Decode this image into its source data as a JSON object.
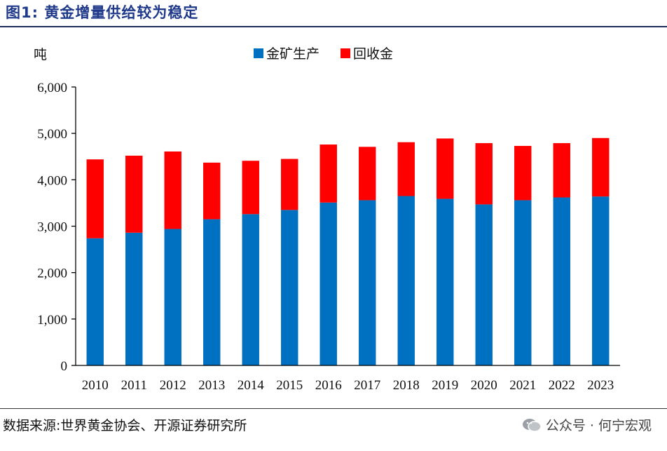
{
  "title": "图1:  黄金增量供给较为稳定",
  "source": "数据来源:世界黄金协会、开源证券研究所",
  "watermark": "公众号 · 何宁宏观",
  "chart_data": {
    "type": "bar",
    "stacked": true,
    "ylabel": "吨",
    "ylim": [
      0,
      6000
    ],
    "yticks": [
      "0",
      "1,000",
      "2,000",
      "3,000",
      "4,000",
      "5,000",
      "6,000"
    ],
    "categories": [
      "2010",
      "2011",
      "2012",
      "2013",
      "2014",
      "2015",
      "2016",
      "2017",
      "2018",
      "2019",
      "2020",
      "2021",
      "2022",
      "2023"
    ],
    "legend_position": "top",
    "series": [
      {
        "name": "金矿生产",
        "color": "#0070c0",
        "values": [
          2740,
          2860,
          2940,
          3150,
          3260,
          3350,
          3510,
          3560,
          3650,
          3590,
          3470,
          3560,
          3620,
          3640
        ]
      },
      {
        "name": "回收金",
        "color": "#ff0000",
        "values": [
          1700,
          1660,
          1670,
          1220,
          1150,
          1100,
          1250,
          1150,
          1160,
          1300,
          1320,
          1170,
          1170,
          1260
        ]
      }
    ]
  }
}
